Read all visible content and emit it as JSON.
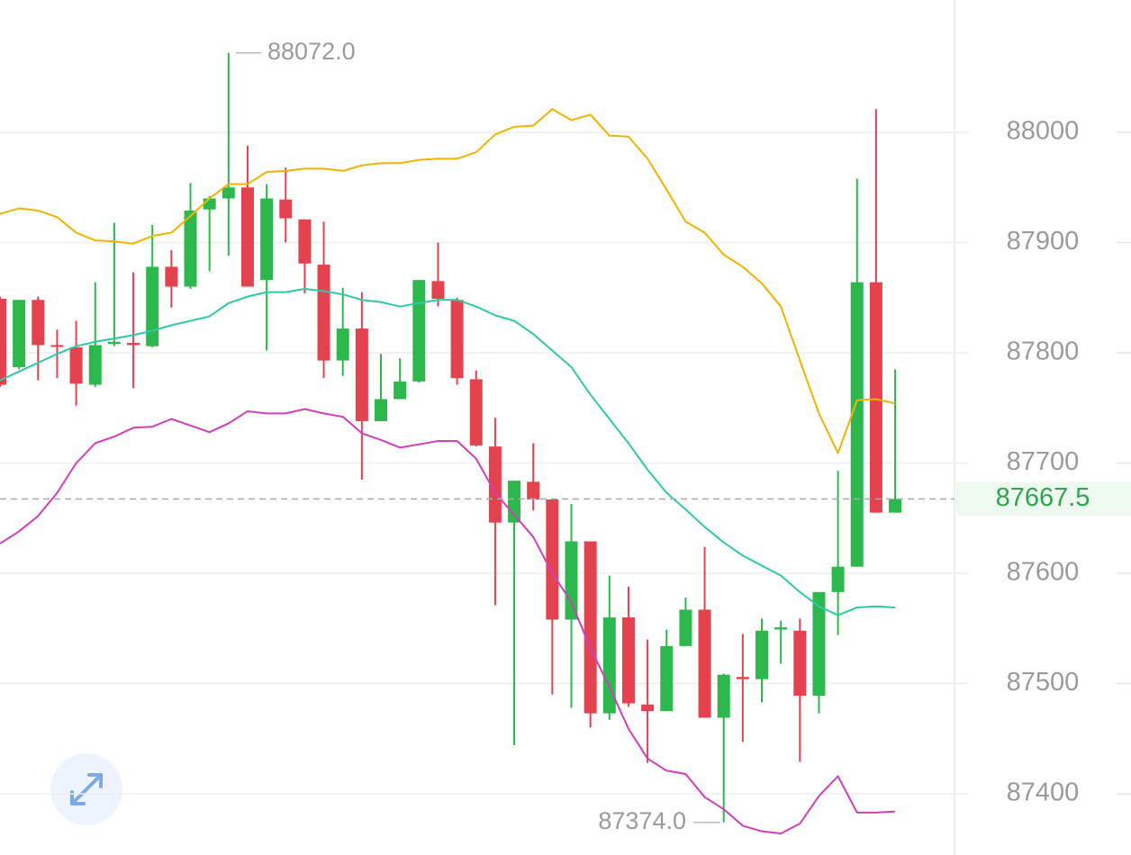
{
  "chart_data": {
    "type": "candlestick",
    "up_color": "#2db84d",
    "down_color": "#e5424f",
    "open": [
      87849,
      87787,
      87848,
      87807,
      87805,
      87771,
      87808,
      87809,
      87806,
      87878,
      87860,
      87930,
      87940,
      87950,
      87866,
      87939,
      87921,
      87880,
      87793,
      87822,
      87738,
      87758,
      87774,
      87865,
      87848,
      87776,
      87715,
      87646,
      87683,
      87667,
      87558,
      87629,
      87473,
      87560,
      87481,
      87475,
      87534,
      87567,
      87469,
      87506,
      87504,
      87549,
      87548,
      87489,
      87583,
      87606,
      87864,
      87655
    ],
    "high": [
      87851,
      87848,
      87851,
      87821,
      87829,
      87864,
      87918,
      87873,
      87916,
      87893,
      87954,
      87942,
      88072,
      87988,
      87953,
      87968,
      87921,
      87919,
      87859,
      87855,
      87799,
      87795,
      87866,
      87900,
      87850,
      87784,
      87741,
      87684,
      87718,
      87667,
      87663,
      87629,
      87598,
      87588,
      87540,
      87549,
      87578,
      87624,
      87509,
      87545,
      87559,
      87557,
      87559,
      87583,
      87693,
      87958,
      88021,
      87785
    ],
    "low": [
      87769,
      87785,
      87775,
      87777,
      87752,
      87769,
      87806,
      87768,
      87805,
      87841,
      87858,
      87874,
      87888,
      87860,
      87802,
      87900,
      87854,
      87777,
      87779,
      87685,
      87738,
      87758,
      87773,
      87842,
      87771,
      87715,
      87571,
      87444,
      87657,
      87490,
      87478,
      87460,
      87467,
      87479,
      87428,
      87475,
      87534,
      87469,
      87374,
      87447,
      87483,
      87518,
      87429,
      87473,
      87544,
      87606,
      87655,
      87655
    ],
    "close": [
      87771,
      87848,
      87807,
      87806,
      87772,
      87807,
      87810,
      87807,
      87878,
      87860,
      87929,
      87940,
      87950,
      87860,
      87940,
      87922,
      87881,
      87793,
      87822,
      87738,
      87758,
      87774,
      87866,
      87849,
      87777,
      87716,
      87646,
      87684,
      87667,
      87558,
      87629,
      87473,
      87560,
      87482,
      87475,
      87534,
      87567,
      87469,
      87508,
      87504,
      87548,
      87551,
      87489,
      87583,
      87606,
      87864,
      87655,
      87667.5
    ],
    "lines": [
      {
        "color": "#f0b400",
        "values": [
          87926,
          87931,
          87929,
          87923,
          87909,
          87902,
          87901,
          87899,
          87906,
          87909,
          87924,
          87940,
          87953,
          87953,
          87964,
          87965,
          87967,
          87967,
          87965,
          87970,
          87972,
          87972,
          87975,
          87976,
          87976,
          87982,
          87998,
          88005,
          88006,
          88021,
          88011,
          88016,
          87997,
          87996,
          87976,
          87948,
          87919,
          87909,
          87889,
          87878,
          87863,
          87842,
          87793,
          87745,
          87709,
          87757,
          87758,
          87754
        ]
      },
      {
        "color": "#2fc9a5",
        "values": [
          87775,
          87783,
          87791,
          87799,
          87806,
          87810,
          87813,
          87816,
          87820,
          87825,
          87829,
          87833,
          87845,
          87851,
          87855,
          87855,
          87858,
          87856,
          87853,
          87848,
          87846,
          87842,
          87845,
          87848,
          87848,
          87842,
          87834,
          87829,
          87817,
          87802,
          87787,
          87762,
          87740,
          87718,
          87694,
          87673,
          87658,
          87642,
          87628,
          87616,
          87607,
          87598,
          87583,
          87570,
          87562,
          87569,
          87570,
          87569
        ]
      },
      {
        "color": "#d13fb8",
        "values": [
          87627,
          87638,
          87652,
          87673,
          87700,
          87718,
          87724,
          87732,
          87733,
          87740,
          87734,
          87728,
          87736,
          87747,
          87745,
          87745,
          87749,
          87745,
          87742,
          87727,
          87721,
          87714,
          87717,
          87720,
          87720,
          87704,
          87673,
          87653,
          87633,
          87600,
          87574,
          87532,
          87497,
          87459,
          87432,
          87421,
          87418,
          87397,
          87386,
          87371,
          87366,
          87364,
          87373,
          87398,
          87416,
          87383,
          87383,
          87384
        ]
      }
    ],
    "ylim": [
      87344.5,
      88120
    ],
    "yticks": [
      87400,
      87500,
      87600,
      87700,
      87800,
      87900,
      88000
    ],
    "grid": true,
    "last_price": 87667.5,
    "high_label": {
      "value": 88072,
      "label": "88072.0"
    },
    "low_label": {
      "value": 87374,
      "label": "87374.0"
    }
  }
}
